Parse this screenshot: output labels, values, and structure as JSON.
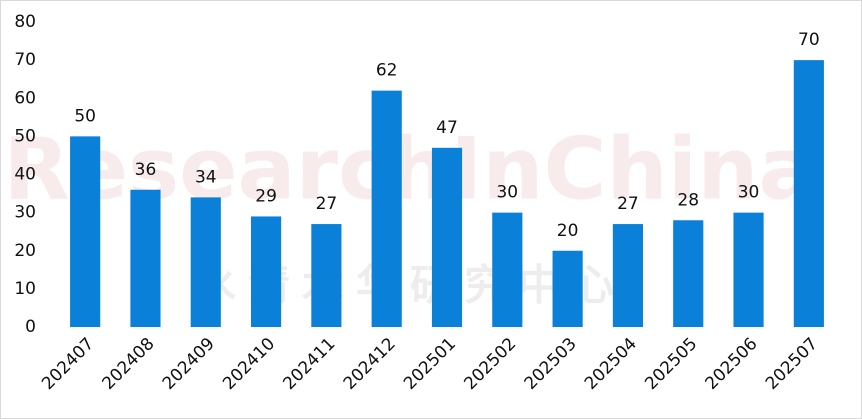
{
  "chart_data": {
    "type": "bar",
    "categories": [
      "202407",
      "202408",
      "202409",
      "202410",
      "202411",
      "202412",
      "202501",
      "202502",
      "202503",
      "202504",
      "202505",
      "202506",
      "202507"
    ],
    "values": [
      50,
      36,
      34,
      29,
      27,
      62,
      47,
      30,
      20,
      27,
      28,
      30,
      70
    ],
    "color": "#0b80d8",
    "ylim": [
      0,
      80
    ],
    "yticks": [
      0,
      10,
      20,
      30,
      40,
      50,
      60,
      70,
      80
    ],
    "grid": false,
    "watermark": [
      "ResearchInChina",
      "水清木华研究中心"
    ]
  }
}
